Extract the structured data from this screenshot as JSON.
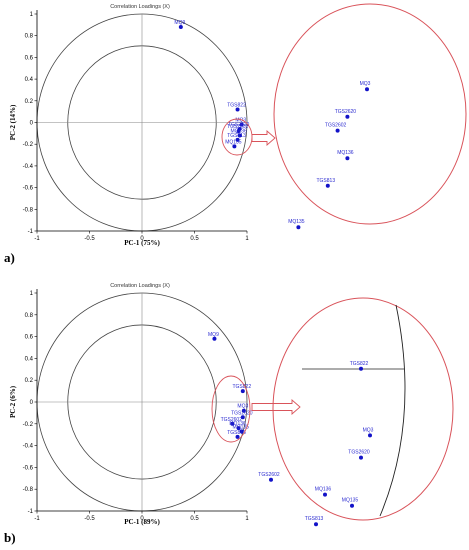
{
  "chart_data": [
    {
      "type": "scatter",
      "panel_label": "a)",
      "title": "Correlation Loadings (X)",
      "xlabel": "PC-1 (75%)",
      "ylabel": "PC-2 (14%)",
      "xlim": [
        -1,
        1
      ],
      "ylim": [
        -1,
        1
      ],
      "xticks": [
        "-1",
        "-0.5",
        "0",
        "0.5",
        "1"
      ],
      "yticks": [
        "1",
        "0.8",
        "0.6",
        "0.4",
        "0.2",
        "0",
        "-0.2",
        "-0.4",
        "-0.6",
        "-0.8",
        "-1"
      ],
      "inner_circle_radius": 0.707,
      "outer_circle_radius": 1.0,
      "points": [
        {
          "label": "MQ9",
          "x": 0.37,
          "y": 0.88
        },
        {
          "label": "TGS822",
          "x": 0.91,
          "y": 0.12
        },
        {
          "label": "MQ3",
          "x": 0.95,
          "y": -0.02
        },
        {
          "label": "TGS2620",
          "x": 0.93,
          "y": -0.06
        },
        {
          "label": "TGS2602",
          "x": 0.92,
          "y": -0.08
        },
        {
          "label": "MQ136",
          "x": 0.93,
          "y": -0.12
        },
        {
          "label": "TGS813",
          "x": 0.91,
          "y": -0.16
        },
        {
          "label": "MQ135",
          "x": 0.88,
          "y": -0.22
        }
      ],
      "zoom_points": [
        {
          "label": "MQ3",
          "x": 0.95,
          "y": -0.02
        },
        {
          "label": "TGS2620",
          "x": 0.93,
          "y": -0.06
        },
        {
          "label": "TGS2602",
          "x": 0.92,
          "y": -0.08
        },
        {
          "label": "MQ136",
          "x": 0.93,
          "y": -0.12
        },
        {
          "label": "TGS813",
          "x": 0.91,
          "y": -0.16
        },
        {
          "label": "MQ135",
          "x": 0.88,
          "y": -0.22
        }
      ]
    },
    {
      "type": "scatter",
      "panel_label": "b)",
      "title": "Correlation Loadings (X)",
      "xlabel": "PC-1 (89%)",
      "ylabel": "PC-2 (6%)",
      "xlim": [
        -1,
        1
      ],
      "ylim": [
        -1,
        1
      ],
      "xticks": [
        "-1",
        "-0.5",
        "0",
        "0.5",
        "1"
      ],
      "yticks": [
        "1",
        "0.8",
        "0.6",
        "0.4",
        "0.2",
        "0",
        "-0.2",
        "-0.4",
        "-0.6",
        "-0.8",
        "-1"
      ],
      "inner_circle_radius": 0.707,
      "outer_circle_radius": 1.0,
      "points": [
        {
          "label": "MQ9",
          "x": 0.69,
          "y": 0.58
        },
        {
          "label": "TGS822",
          "x": 0.96,
          "y": 0.1
        },
        {
          "label": "MQ3",
          "x": 0.97,
          "y": -0.08
        },
        {
          "label": "TGS2620",
          "x": 0.96,
          "y": -0.14
        },
        {
          "label": "TGS2602",
          "x": 0.86,
          "y": -0.2
        },
        {
          "label": "MQ136",
          "x": 0.92,
          "y": -0.24
        },
        {
          "label": "MQ135",
          "x": 0.95,
          "y": -0.27
        },
        {
          "label": "TGS813",
          "x": 0.91,
          "y": -0.32
        }
      ],
      "zoom_points": [
        {
          "label": "TGS822",
          "x": 0.96,
          "y": 0.1
        },
        {
          "label": "MQ3",
          "x": 0.97,
          "y": -0.08
        },
        {
          "label": "TGS2620",
          "x": 0.96,
          "y": -0.14
        },
        {
          "label": "TGS2602",
          "x": 0.86,
          "y": -0.2
        },
        {
          "label": "MQ136",
          "x": 0.92,
          "y": -0.24
        },
        {
          "label": "MQ135",
          "x": 0.95,
          "y": -0.27
        },
        {
          "label": "TGS813",
          "x": 0.91,
          "y": -0.32
        }
      ]
    }
  ],
  "colors": {
    "point": "#1212c8",
    "point_label": "#2a2ad0",
    "circle": "#444444",
    "highlight": "#d9535a",
    "axis": "#000000"
  }
}
